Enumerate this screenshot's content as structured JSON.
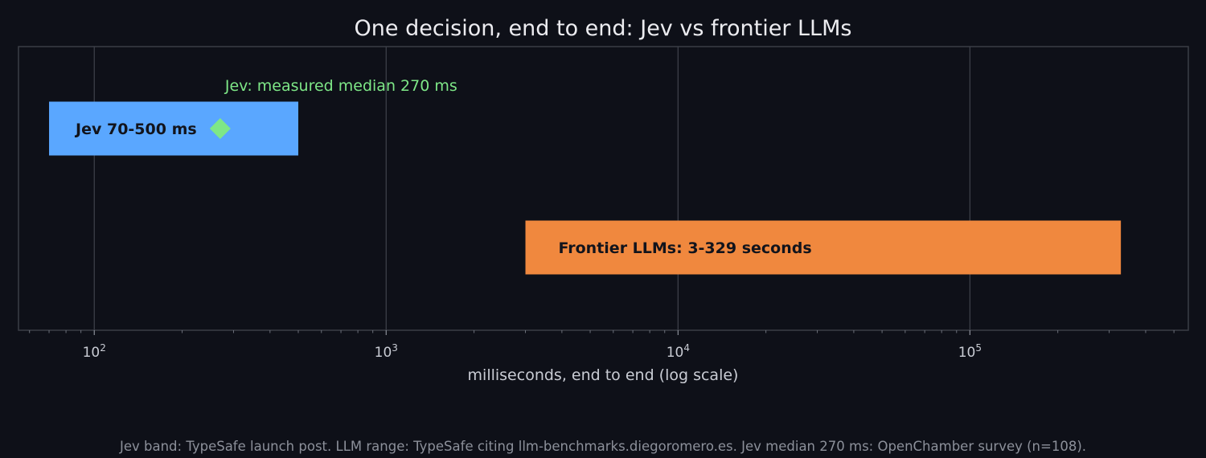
{
  "chart_data": {
    "type": "bar",
    "orientation": "horizontal",
    "title": "One decision, end to end: Jev vs frontier LLMs",
    "xlabel": "milliseconds, end to end (log scale)",
    "xscale": "log",
    "xlim": [
      55,
      560000
    ],
    "grid": "major vertical lines",
    "x_ticks": [
      {
        "base": "10",
        "exp": "2",
        "value": 100
      },
      {
        "base": "10",
        "exp": "3",
        "value": 1000
      },
      {
        "base": "10",
        "exp": "4",
        "value": 10000
      },
      {
        "base": "10",
        "exp": "5",
        "value": 100000
      }
    ],
    "ranges": [
      {
        "label": "Jev 70-500 ms",
        "start": 70,
        "end": 500,
        "color": "#5aa7ff"
      },
      {
        "label": "Frontier LLMs: 3-329 seconds",
        "start": 3000,
        "end": 329000,
        "color": "#f0883e"
      }
    ],
    "marker": {
      "value": 270,
      "color": "#7ee787",
      "annotation": "Jev: measured median 270 ms"
    }
  },
  "footnote": "Jev band: TypeSafe launch post. LLM range: TypeSafe citing llm-benchmarks.diegoromero.es. Jev median 270 ms: OpenChamber survey (n=108)."
}
